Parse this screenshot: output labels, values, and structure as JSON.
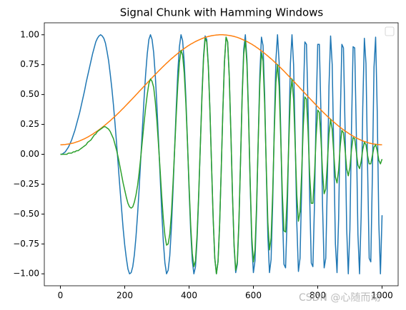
{
  "chart_data": {
    "type": "line",
    "title": "Signal Chunk with Hamming Windows",
    "x": [
      0,
      5,
      10,
      15,
      20,
      25,
      30,
      35,
      40,
      45,
      50,
      55,
      60,
      65,
      70,
      75,
      80,
      85,
      90,
      95,
      100,
      105,
      110,
      115,
      120,
      125,
      130,
      135,
      140,
      145,
      150,
      155,
      160,
      165,
      170,
      175,
      180,
      185,
      190,
      195,
      200,
      205,
      210,
      215,
      220,
      225,
      230,
      235,
      240,
      245,
      250,
      255,
      260,
      265,
      270,
      275,
      280,
      285,
      290,
      295,
      300,
      305,
      310,
      315,
      320,
      325,
      330,
      335,
      340,
      345,
      350,
      355,
      360,
      365,
      370,
      375,
      380,
      385,
      390,
      395,
      400,
      405,
      410,
      415,
      420,
      425,
      430,
      435,
      440,
      445,
      450,
      455,
      460,
      465,
      470,
      475,
      480,
      485,
      490,
      495,
      500,
      505,
      510,
      515,
      520,
      525,
      530,
      535,
      540,
      545,
      550,
      555,
      560,
      565,
      570,
      575,
      580,
      585,
      590,
      595,
      600,
      605,
      610,
      615,
      620,
      625,
      630,
      635,
      640,
      645,
      650,
      655,
      660,
      665,
      670,
      675,
      680,
      685,
      690,
      695,
      700,
      705,
      710,
      715,
      720,
      725,
      730,
      735,
      740,
      745,
      750,
      755,
      760,
      765,
      770,
      775,
      780,
      785,
      790,
      795,
      800,
      805,
      810,
      815,
      820,
      825,
      830,
      835,
      840,
      845,
      850,
      855,
      860,
      865,
      870,
      875,
      880,
      885,
      890,
      895,
      900,
      905,
      910,
      915,
      920,
      925,
      930,
      935,
      940,
      945,
      950,
      955,
      960,
      965,
      970,
      975,
      980,
      985,
      990,
      995,
      1000
    ],
    "series": [
      {
        "color": "#1f77b4",
        "values": [
          0,
          0,
          0.01,
          0.02,
          0.04,
          0.06,
          0.09,
          0.12,
          0.16,
          0.2,
          0.25,
          0.3,
          0.35,
          0.41,
          0.47,
          0.53,
          0.6,
          0.66,
          0.72,
          0.78,
          0.84,
          0.89,
          0.94,
          0.97,
          0.99,
          1,
          0.99,
          0.97,
          0.93,
          0.86,
          0.78,
          0.67,
          0.55,
          0.41,
          0.25,
          0.08,
          -0.1,
          -0.28,
          -0.45,
          -0.62,
          -0.76,
          -0.87,
          -0.96,
          -1,
          -0.99,
          -0.94,
          -0.84,
          -0.69,
          -0.5,
          -0.28,
          -0.03,
          0.22,
          0.46,
          0.67,
          0.84,
          0.96,
          1,
          0.96,
          0.85,
          0.66,
          0.41,
          0.12,
          -0.18,
          -0.48,
          -0.73,
          -0.91,
          -1,
          -0.97,
          -0.85,
          -0.62,
          -0.31,
          0.04,
          0.38,
          0.69,
          0.9,
          1,
          0.95,
          0.77,
          0.48,
          0.11,
          -0.29,
          -0.64,
          -0.89,
          -1,
          -0.94,
          -0.71,
          -0.35,
          0.07,
          0.49,
          0.82,
          0.99,
          0.96,
          0.74,
          0.36,
          -0.1,
          -0.54,
          -0.87,
          -1,
          -0.9,
          -0.59,
          -0.13,
          0.36,
          0.77,
          0.98,
          0.94,
          0.65,
          0.18,
          -0.34,
          -0.77,
          -0.99,
          -0.92,
          -0.58,
          -0.06,
          0.49,
          0.88,
          1,
          0.79,
          0.33,
          -0.25,
          -0.75,
          -0.99,
          -0.89,
          -0.47,
          0.12,
          0.67,
          0.98,
          0.91,
          0.5,
          -0.12,
          -0.69,
          -0.99,
          -0.88,
          -0.41,
          0.24,
          0.79,
          1,
          0.77,
          0.2,
          -0.47,
          -0.92,
          -0.95,
          -0.53,
          0.14,
          0.76,
          1,
          0.75,
          0.12,
          -0.58,
          -0.98,
          -0.87,
          -0.29,
          0.44,
          0.94,
          0.92,
          0.39,
          -0.36,
          -0.91,
          -0.94,
          -0.41,
          0.36,
          0.92,
          0.92,
          0.35,
          -0.43,
          -0.95,
          -0.87,
          -0.22,
          0.57,
          0.99,
          0.75,
          0.01,
          -0.75,
          -0.99,
          -0.54,
          0.29,
          0.92,
          0.89,
          0.22,
          -0.62,
          -1,
          -0.63,
          0.22,
          0.9,
          0.89,
          0.18,
          -0.67,
          -1,
          -0.52,
          0.39,
          0.97,
          0.76,
          -0.1,
          -0.87,
          -0.9,
          -0.16,
          0.73,
          0.98,
          0.36,
          -0.58,
          -1,
          -0.51
        ]
      },
      {
        "color": "#ff7f0e",
        "values": [
          0.08,
          0.08,
          0.081,
          0.082,
          0.084,
          0.086,
          0.088,
          0.091,
          0.094,
          0.098,
          0.103,
          0.107,
          0.112,
          0.118,
          0.124,
          0.13,
          0.137,
          0.144,
          0.152,
          0.16,
          0.168,
          0.177,
          0.186,
          0.195,
          0.205,
          0.215,
          0.225,
          0.236,
          0.247,
          0.258,
          0.27,
          0.281,
          0.294,
          0.306,
          0.318,
          0.331,
          0.344,
          0.357,
          0.371,
          0.384,
          0.398,
          0.412,
          0.426,
          0.44,
          0.454,
          0.468,
          0.482,
          0.497,
          0.511,
          0.526,
          0.54,
          0.554,
          0.569,
          0.583,
          0.598,
          0.612,
          0.626,
          0.64,
          0.654,
          0.668,
          0.682,
          0.696,
          0.709,
          0.723,
          0.736,
          0.749,
          0.762,
          0.774,
          0.787,
          0.799,
          0.81,
          0.822,
          0.833,
          0.844,
          0.855,
          0.865,
          0.875,
          0.885,
          0.894,
          0.904,
          0.912,
          0.921,
          0.928,
          0.936,
          0.943,
          0.95,
          0.956,
          0.962,
          0.968,
          0.973,
          0.978,
          0.982,
          0.986,
          0.989,
          0.992,
          0.994,
          0.996,
          0.998,
          0.999,
          1,
          1,
          1,
          0.999,
          0.998,
          0.996,
          0.994,
          0.992,
          0.989,
          0.986,
          0.982,
          0.978,
          0.973,
          0.968,
          0.962,
          0.956,
          0.95,
          0.943,
          0.936,
          0.928,
          0.921,
          0.912,
          0.904,
          0.894,
          0.885,
          0.875,
          0.865,
          0.855,
          0.844,
          0.833,
          0.822,
          0.81,
          0.799,
          0.787,
          0.774,
          0.762,
          0.749,
          0.736,
          0.723,
          0.709,
          0.696,
          0.682,
          0.668,
          0.654,
          0.64,
          0.626,
          0.612,
          0.598,
          0.583,
          0.569,
          0.554,
          0.54,
          0.526,
          0.511,
          0.497,
          0.482,
          0.468,
          0.454,
          0.44,
          0.426,
          0.412,
          0.398,
          0.384,
          0.371,
          0.357,
          0.344,
          0.331,
          0.318,
          0.306,
          0.294,
          0.281,
          0.27,
          0.258,
          0.247,
          0.236,
          0.225,
          0.215,
          0.205,
          0.195,
          0.186,
          0.177,
          0.168,
          0.16,
          0.152,
          0.144,
          0.137,
          0.13,
          0.124,
          0.118,
          0.112,
          0.107,
          0.103,
          0.098,
          0.094,
          0.091,
          0.088,
          0.086,
          0.084,
          0.082,
          0.081,
          0.08,
          0.08
        ]
      },
      {
        "color": "#2ca02c",
        "values": [
          0,
          0,
          0,
          0,
          0,
          0.01,
          0.01,
          0.01,
          0.02,
          0.02,
          0.03,
          0.03,
          0.04,
          0.05,
          0.06,
          0.07,
          0.08,
          0.1,
          0.11,
          0.12,
          0.14,
          0.16,
          0.17,
          0.19,
          0.2,
          0.21,
          0.22,
          0.23,
          0.23,
          0.22,
          0.21,
          0.19,
          0.16,
          0.13,
          0.08,
          0.03,
          -0.03,
          -0.1,
          -0.17,
          -0.24,
          -0.3,
          -0.36,
          -0.41,
          -0.44,
          -0.45,
          -0.44,
          -0.4,
          -0.34,
          -0.26,
          -0.15,
          -0.02,
          0.12,
          0.26,
          0.39,
          0.5,
          0.59,
          0.63,
          0.61,
          0.56,
          0.44,
          0.28,
          0.08,
          -0.13,
          -0.35,
          -0.54,
          -0.68,
          -0.76,
          -0.75,
          -0.67,
          -0.5,
          -0.25,
          0.03,
          0.32,
          0.58,
          0.77,
          0.87,
          0.83,
          0.68,
          0.43,
          0.1,
          -0.26,
          -0.59,
          -0.83,
          -0.94,
          -0.89,
          -0.67,
          -0.33,
          0.07,
          0.47,
          0.8,
          0.97,
          0.94,
          0.73,
          0.36,
          -0.1,
          -0.54,
          -0.87,
          -1,
          -0.9,
          -0.59,
          -0.13,
          0.36,
          0.77,
          0.98,
          0.94,
          0.65,
          0.18,
          -0.34,
          -0.76,
          -0.97,
          -0.9,
          -0.56,
          -0.06,
          0.47,
          0.84,
          0.95,
          0.75,
          0.31,
          -0.23,
          -0.69,
          -0.9,
          -0.8,
          -0.42,
          0.11,
          0.59,
          0.85,
          0.78,
          0.42,
          -0.1,
          -0.57,
          -0.8,
          -0.7,
          -0.32,
          0.19,
          0.6,
          0.75,
          0.57,
          0.14,
          -0.33,
          -0.64,
          -0.65,
          -0.35,
          0.09,
          0.49,
          0.63,
          0.46,
          0.07,
          -0.34,
          -0.56,
          -0.48,
          -0.16,
          0.23,
          0.48,
          0.46,
          0.19,
          -0.17,
          -0.41,
          -0.41,
          -0.17,
          0.15,
          0.37,
          0.35,
          0.13,
          -0.15,
          -0.33,
          -0.29,
          -0.07,
          0.17,
          0.29,
          0.21,
          0,
          -0.19,
          -0.24,
          -0.13,
          0.07,
          0.2,
          0.18,
          0.04,
          -0.12,
          -0.18,
          -0.11,
          0.04,
          0.14,
          0.13,
          0.02,
          -0.09,
          -0.12,
          -0.06,
          0.04,
          0.1,
          0.08,
          -0.01,
          -0.08,
          -0.08,
          -0.01,
          0.06,
          0.08,
          0.03,
          -0.05,
          -0.08,
          -0.04
        ]
      }
    ],
    "xlim": [
      -50,
      1050
    ],
    "xticks": [
      0,
      200,
      400,
      600,
      800,
      1000
    ],
    "ylim": [
      -1.1,
      1.1
    ],
    "yticks": [
      {
        "value": -1,
        "label": "−1.00"
      },
      {
        "value": -0.75,
        "label": "−0.75"
      },
      {
        "value": -0.5,
        "label": "−0.50"
      },
      {
        "value": -0.25,
        "label": "−0.25"
      },
      {
        "value": 0,
        "label": "0.00"
      },
      {
        "value": 0.25,
        "label": "0.25"
      },
      {
        "value": 0.5,
        "label": "0.50"
      },
      {
        "value": 0.75,
        "label": "0.75"
      },
      {
        "value": 1,
        "label": "1.00"
      }
    ],
    "grid": false,
    "legend": "upper right",
    "watermark": "CSDN @心随而动"
  }
}
